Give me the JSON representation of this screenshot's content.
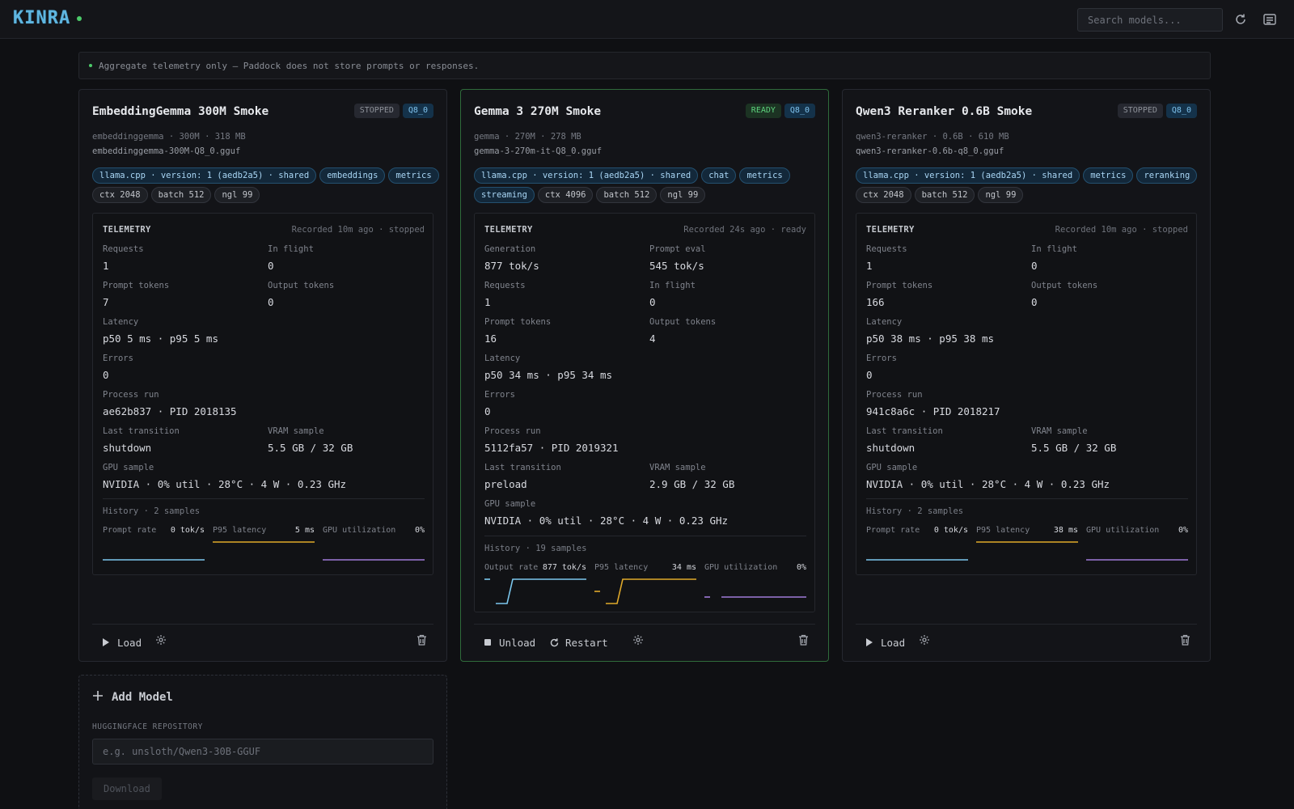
{
  "app": {
    "logo": "KINRA"
  },
  "search": {
    "placeholder": "Search models..."
  },
  "banner": {
    "text": "Aggregate telemetry only — Paddock does not store prompts or responses."
  },
  "colors": {
    "accent": "#5fb6e0",
    "ready": "#5dd37d",
    "prompt_rate": "#7cc8ee",
    "p95_latency": "#e0a92a",
    "gpu_util": "#a07ad8"
  },
  "cards": [
    {
      "title": "EmbeddingGemma 300M Smoke",
      "status": "STOPPED",
      "quant": "Q8_0",
      "meta": "embeddinggemma · 300M · 318 MB",
      "file": "embeddinggemma-300M-Q8_0.gguf",
      "tags": [
        "llama.cpp · version: 1 (aedb2a5) · shared",
        "embeddings",
        "metrics",
        "ctx 2048",
        "batch 512",
        "ngl 99"
      ],
      "telemetry": {
        "title": "TELEMETRY",
        "recorded": "Recorded 10m ago · stopped",
        "requests_label": "Requests",
        "requests": "1",
        "inflight_label": "In flight",
        "inflight": "0",
        "prompt_tokens_label": "Prompt tokens",
        "prompt_tokens": "7",
        "output_tokens_label": "Output tokens",
        "output_tokens": "0",
        "latency_label": "Latency",
        "latency": "p50 5 ms · p95 5 ms",
        "errors_label": "Errors",
        "errors": "0",
        "process_label": "Process run",
        "process": "ae62b837 · PID 2018135",
        "transition_label": "Last transition",
        "transition": "shutdown",
        "vram_label": "VRAM sample",
        "vram": "5.5 GB / 32 GB",
        "gpu_label": "GPU sample",
        "gpu": "NVIDIA · 0% util · 28°C · 4 W · 0.23 GHz",
        "history": "History · 2 samples",
        "spark": [
          {
            "label": "Prompt rate",
            "value": "0 tok/s",
            "samples": [
              0,
              0
            ]
          },
          {
            "label": "P95 latency",
            "value": "5 ms",
            "samples": [
              5,
              5
            ]
          },
          {
            "label": "GPU utilization",
            "value": "0%",
            "samples": [
              0,
              0
            ]
          }
        ]
      },
      "actions": {
        "primary": "Load"
      }
    },
    {
      "title": "Gemma 3 270M Smoke",
      "status": "READY",
      "quant": "Q8_0",
      "meta": "gemma · 270M · 278 MB",
      "file": "gemma-3-270m-it-Q8_0.gguf",
      "tags": [
        "llama.cpp · version: 1 (aedb2a5) · shared",
        "chat",
        "metrics",
        "streaming",
        "ctx 4096",
        "batch 512",
        "ngl 99"
      ],
      "telemetry": {
        "title": "TELEMETRY",
        "recorded": "Recorded 24s ago · ready",
        "generation_label": "Generation",
        "generation": "877 tok/s",
        "prompt_eval_label": "Prompt eval",
        "prompt_eval": "545 tok/s",
        "requests_label": "Requests",
        "requests": "1",
        "inflight_label": "In flight",
        "inflight": "0",
        "prompt_tokens_label": "Prompt tokens",
        "prompt_tokens": "16",
        "output_tokens_label": "Output tokens",
        "output_tokens": "4",
        "latency_label": "Latency",
        "latency": "p50 34 ms · p95 34 ms",
        "errors_label": "Errors",
        "errors": "0",
        "process_label": "Process run",
        "process": "5112fa57 · PID 2019321",
        "transition_label": "Last transition",
        "transition": "preload",
        "vram_label": "VRAM sample",
        "vram": "2.9 GB / 32 GB",
        "gpu_label": "GPU sample",
        "gpu": "NVIDIA · 0% util · 28°C · 4 W · 0.23 GHz",
        "history": "History · 19 samples",
        "spark": [
          {
            "label": "Output rate",
            "value": "877 tok/s",
            "samples": [
              877,
              null,
              0,
              0,
              0,
              877,
              877,
              877,
              877,
              877,
              877,
              877,
              877,
              877,
              877,
              877,
              877,
              877,
              877
            ]
          },
          {
            "label": "P95 latency",
            "value": "34 ms",
            "samples": [
              17,
              null,
              0,
              0,
              0,
              34,
              34,
              34,
              34,
              34,
              34,
              34,
              34,
              34,
              34,
              34,
              34,
              34,
              34
            ]
          },
          {
            "label": "GPU utilization",
            "value": "0%",
            "samples": [
              0,
              0,
              null,
              0,
              0,
              0,
              0,
              0,
              0,
              0,
              0,
              0,
              0,
              0,
              0,
              0,
              0,
              0,
              0
            ]
          }
        ]
      },
      "actions": {
        "primary": "Unload",
        "secondary": "Restart"
      }
    },
    {
      "title": "Qwen3 Reranker 0.6B Smoke",
      "status": "STOPPED",
      "quant": "Q8_0",
      "meta": "qwen3-reranker · 0.6B · 610 MB",
      "file": "qwen3-reranker-0.6b-q8_0.gguf",
      "tags": [
        "llama.cpp · version: 1 (aedb2a5) · shared",
        "metrics",
        "reranking",
        "ctx 2048",
        "batch 512",
        "ngl 99"
      ],
      "telemetry": {
        "title": "TELEMETRY",
        "recorded": "Recorded 10m ago · stopped",
        "requests_label": "Requests",
        "requests": "1",
        "inflight_label": "In flight",
        "inflight": "0",
        "prompt_tokens_label": "Prompt tokens",
        "prompt_tokens": "166",
        "output_tokens_label": "Output tokens",
        "output_tokens": "0",
        "latency_label": "Latency",
        "latency": "p50 38 ms · p95 38 ms",
        "errors_label": "Errors",
        "errors": "0",
        "process_label": "Process run",
        "process": "941c8a6c · PID 2018217",
        "transition_label": "Last transition",
        "transition": "shutdown",
        "vram_label": "VRAM sample",
        "vram": "5.5 GB / 32 GB",
        "gpu_label": "GPU sample",
        "gpu": "NVIDIA · 0% util · 28°C · 4 W · 0.23 GHz",
        "history": "History · 2 samples",
        "spark": [
          {
            "label": "Prompt rate",
            "value": "0 tok/s",
            "samples": [
              0,
              0
            ]
          },
          {
            "label": "P95 latency",
            "value": "38 ms",
            "samples": [
              38,
              38
            ]
          },
          {
            "label": "GPU utilization",
            "value": "0%",
            "samples": [
              0,
              0
            ]
          }
        ]
      },
      "actions": {
        "primary": "Load"
      }
    }
  ],
  "add_model": {
    "title": "Add Model",
    "repo_label": "HUGGINGFACE REPOSITORY",
    "placeholder": "e.g. unsloth/Qwen3-30B-GGUF",
    "download": "Download"
  }
}
